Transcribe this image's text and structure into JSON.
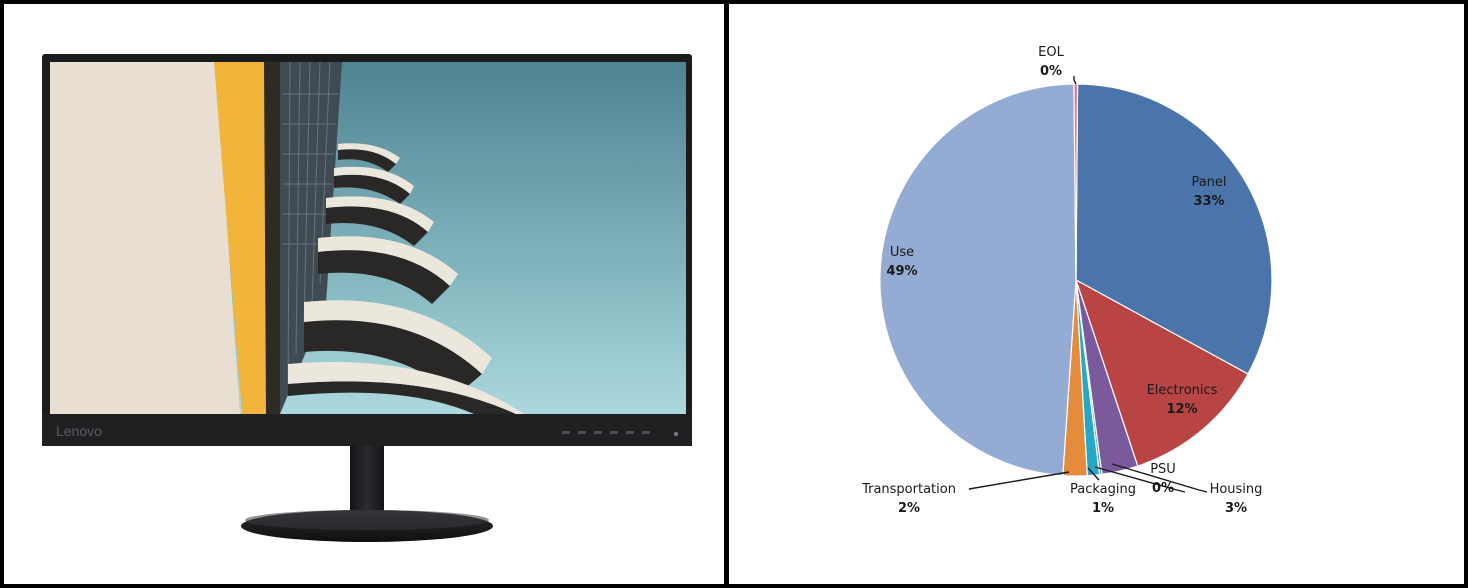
{
  "monitor": {
    "brand": "Lenovo",
    "colors": {
      "bezel": "#1b1c1e",
      "wall_left": "#e7ddd0",
      "accent_yellow": "#f0b53a",
      "sky_top": "#4e8290",
      "sky_bottom": "#a9d5db",
      "balcony_light": "#e8e3d8",
      "balcony_dark": "#2a2826"
    }
  },
  "chart_data": {
    "type": "pie",
    "title": "",
    "slices": [
      {
        "label": "Panel",
        "value": 33,
        "pct_label": "33%",
        "color": "#4a74aa"
      },
      {
        "label": "Electronics",
        "value": 12,
        "pct_label": "12%",
        "color": "#b84543"
      },
      {
        "label": "Housing",
        "value": 3,
        "pct_label": "3%",
        "color": "#7a5a9c"
      },
      {
        "label": "PSU",
        "value": 0.2,
        "pct_label": "0%",
        "color": "#3aa4c4"
      },
      {
        "label": "Packaging",
        "value": 1,
        "pct_label": "1%",
        "color": "#27a7c6"
      },
      {
        "label": "Transportation",
        "value": 2,
        "pct_label": "2%",
        "color": "#e48b3c"
      },
      {
        "label": "Use",
        "value": 49,
        "pct_label": "49%",
        "color": "#94abd3"
      },
      {
        "label": "EOL",
        "value": 0.3,
        "pct_label": "0%",
        "color": "#e27e88"
      }
    ]
  }
}
